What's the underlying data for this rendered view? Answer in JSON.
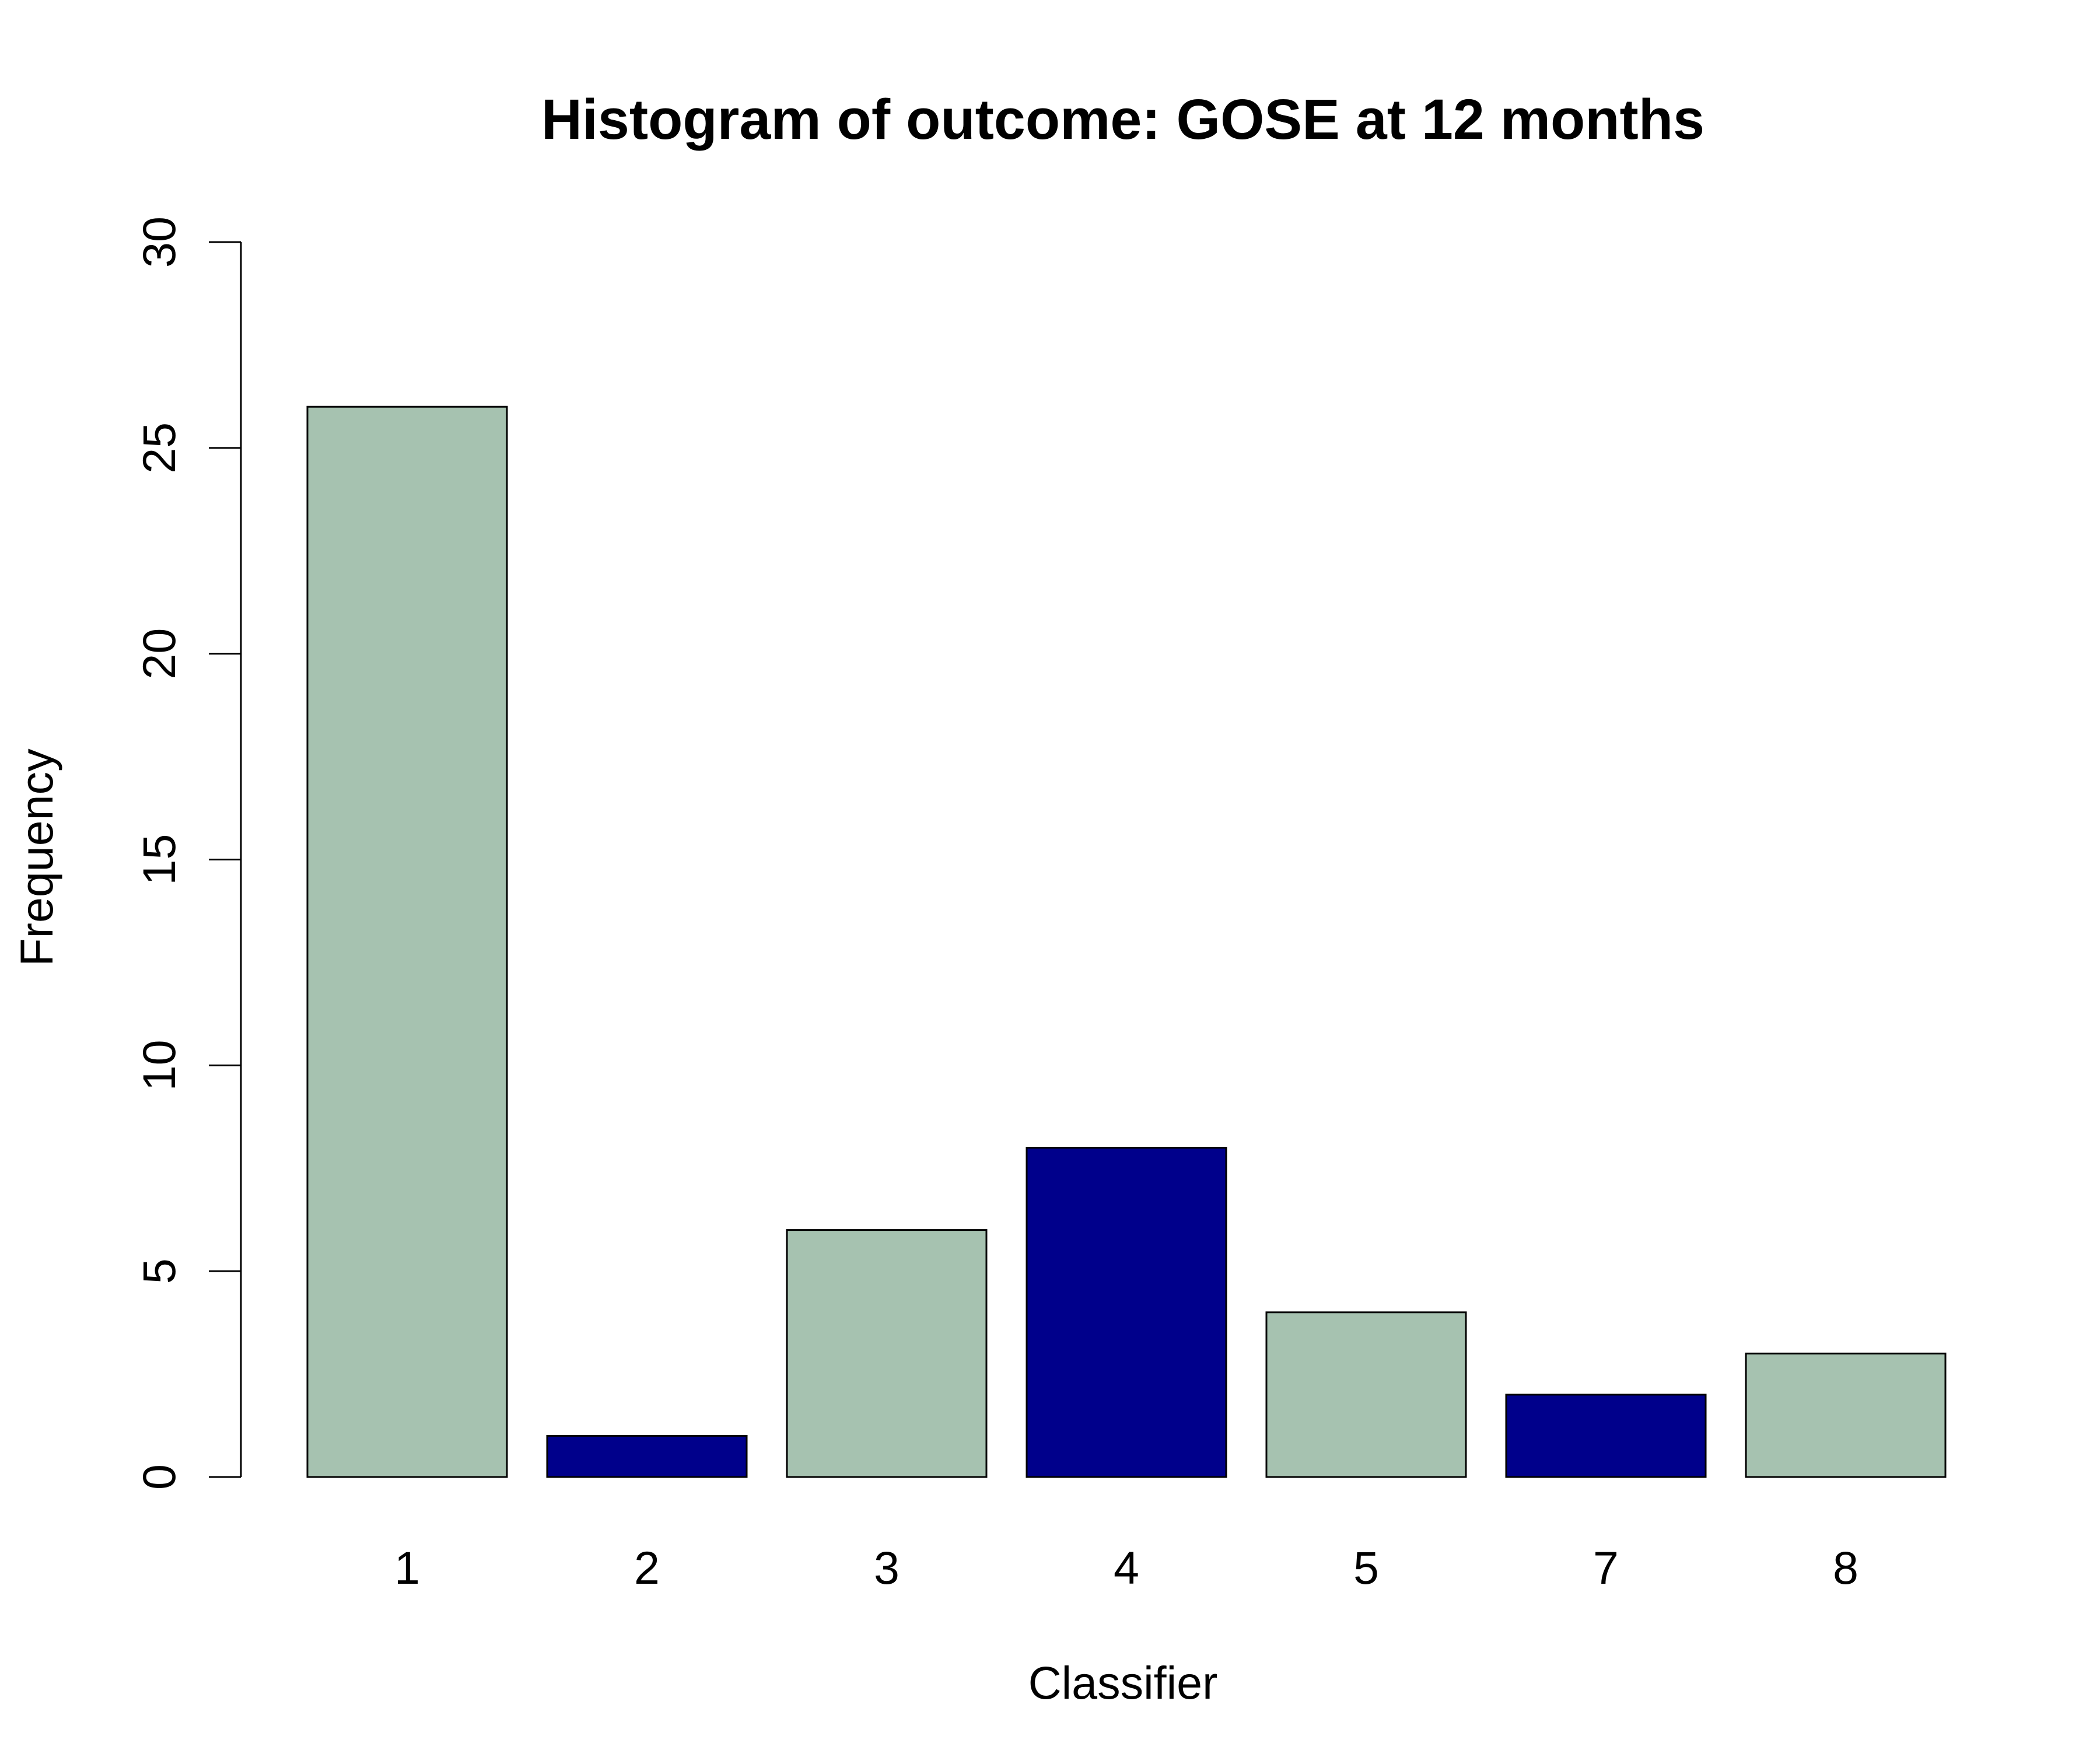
{
  "chart_data": {
    "type": "bar",
    "title": "Histogram of outcome: GOSE at 12 months",
    "xlabel": "Classifier",
    "ylabel": "Frequency",
    "categories": [
      "1",
      "2",
      "3",
      "4",
      "5",
      "7",
      "8"
    ],
    "values": [
      26,
      1,
      6,
      8,
      4,
      2,
      3
    ],
    "ylim": [
      0,
      30
    ],
    "yticks": [
      0,
      5,
      10,
      15,
      20,
      25,
      30
    ],
    "grid": false,
    "colors": {
      "primary": "#a6c2b0",
      "highlight": "#00008b",
      "bar_colors": [
        "#a6c2b0",
        "#00008b",
        "#a6c2b0",
        "#00008b",
        "#a6c2b0",
        "#00008b",
        "#a6c2b0"
      ]
    }
  }
}
